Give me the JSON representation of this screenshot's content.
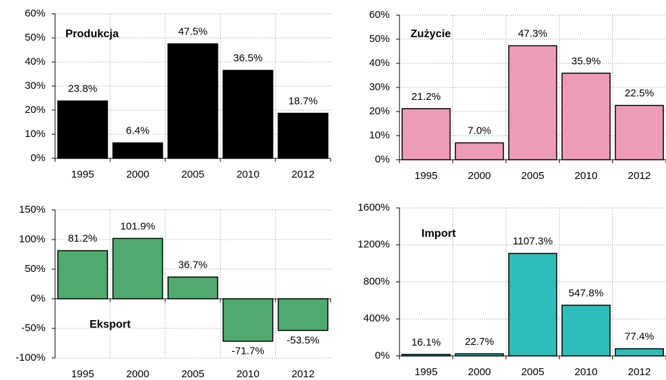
{
  "chart_data": [
    {
      "type": "bar",
      "title": "Produkcja",
      "categories": [
        "1995",
        "2000",
        "2005",
        "2010",
        "2012"
      ],
      "values": [
        23.8,
        6.4,
        47.5,
        36.5,
        18.7
      ],
      "value_labels": [
        "23.8%",
        "6.4%",
        "47.5%",
        "36.5%",
        "18.7%"
      ],
      "color": "#000000",
      "ylim": [
        0,
        60
      ],
      "yticks": [
        {
          "value": 0,
          "label": "0%"
        },
        {
          "value": 10,
          "label": "10%"
        },
        {
          "value": 20,
          "label": "20%"
        },
        {
          "value": 30,
          "label": "30%"
        },
        {
          "value": 40,
          "label": "40%"
        },
        {
          "value": 50,
          "label": "50%"
        },
        {
          "value": 60,
          "label": "60%"
        }
      ],
      "grid": true
    },
    {
      "type": "bar",
      "title": "Zużycie",
      "categories": [
        "1995",
        "2000",
        "2005",
        "2010",
        "2012"
      ],
      "values": [
        21.2,
        7.0,
        47.3,
        35.9,
        22.5
      ],
      "value_labels": [
        "21.2%",
        "7.0%",
        "47.3%",
        "35.9%",
        "22.5%"
      ],
      "color": "#ee9bb6",
      "ylim": [
        0,
        60
      ],
      "yticks": [
        {
          "value": 0,
          "label": "0%"
        },
        {
          "value": 10,
          "label": "10%"
        },
        {
          "value": 20,
          "label": "20%"
        },
        {
          "value": 30,
          "label": "30%"
        },
        {
          "value": 40,
          "label": "40%"
        },
        {
          "value": 50,
          "label": "50%"
        },
        {
          "value": 60,
          "label": "60%"
        }
      ],
      "grid": true
    },
    {
      "type": "bar",
      "title": "Eksport",
      "categories": [
        "1995",
        "2000",
        "2005",
        "2010",
        "2012"
      ],
      "values": [
        81.2,
        101.9,
        36.7,
        -71.7,
        -53.5
      ],
      "value_labels": [
        "81.2%",
        "101.9%",
        "36.7%",
        "-71.7%",
        "-53.5%"
      ],
      "color": "#4faa6f",
      "ylim": [
        -100,
        150
      ],
      "yticks": [
        {
          "value": -100,
          "label": "-100%"
        },
        {
          "value": -50,
          "label": "-50%"
        },
        {
          "value": 0,
          "label": "0%"
        },
        {
          "value": 50,
          "label": "50%"
        },
        {
          "value": 100,
          "label": "100%"
        },
        {
          "value": 150,
          "label": "150%"
        }
      ],
      "grid": true
    },
    {
      "type": "bar",
      "title": "Import",
      "categories": [
        "1995",
        "2000",
        "2005",
        "2010",
        "2012"
      ],
      "values": [
        16.1,
        22.7,
        1107.3,
        547.8,
        77.4
      ],
      "value_labels": [
        "16.1%",
        "22.7%",
        "1107.3%",
        "547.8%",
        "77.4%"
      ],
      "color": "#2ebdb8",
      "ylim": [
        0,
        1600
      ],
      "yticks": [
        {
          "value": 0,
          "label": "0%"
        },
        {
          "value": 400,
          "label": "400%"
        },
        {
          "value": 800,
          "label": "800%"
        },
        {
          "value": 1200,
          "label": "1200%"
        },
        {
          "value": 1600,
          "label": "1600%"
        }
      ],
      "grid": true
    }
  ]
}
